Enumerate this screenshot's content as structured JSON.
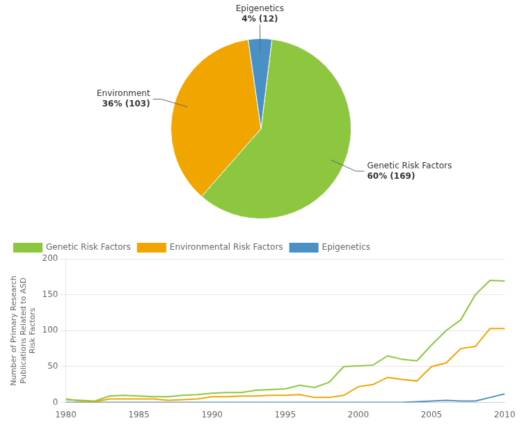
{
  "chart_data": [
    {
      "type": "pie",
      "categories": [
        "Genetic Risk Factors",
        "Environment",
        "Epigenetics"
      ],
      "values": [
        169,
        103,
        12
      ],
      "value_labels": [
        "60% (169)",
        "36% (103)",
        "4% (12)"
      ],
      "colors": [
        "#8dc63f",
        "#f0a500",
        "#4a90c4"
      ],
      "data_labels": true
    },
    {
      "type": "line",
      "x": [
        1980,
        1981,
        1982,
        1983,
        1984,
        1985,
        1986,
        1987,
        1988,
        1989,
        1990,
        1991,
        1992,
        1993,
        1994,
        1995,
        1996,
        1997,
        1998,
        1999,
        2000,
        2001,
        2002,
        2003,
        2004,
        2005,
        2006,
        2007,
        2008,
        2009,
        2010
      ],
      "series": [
        {
          "name": "Genetic Risk Factors",
          "color": "#8dc63f",
          "values": [
            4,
            3,
            2,
            9,
            10,
            9,
            8,
            8,
            10,
            11,
            13,
            14,
            14,
            17,
            18,
            19,
            24,
            21,
            28,
            50,
            51,
            52,
            65,
            60,
            58,
            80,
            100,
            115,
            150,
            170,
            169
          ]
        },
        {
          "name": "Environmental Risk Factors",
          "color": "#f0a500",
          "values": [
            5,
            2,
            1,
            5,
            5,
            5,
            5,
            3,
            4,
            5,
            8,
            8,
            9,
            9,
            10,
            10,
            11,
            7,
            7,
            10,
            22,
            25,
            35,
            32,
            30,
            50,
            55,
            75,
            78,
            103,
            103
          ]
        },
        {
          "name": "Epigenetics",
          "color": "#4a90c4",
          "values": [
            0,
            0,
            0,
            0,
            0,
            0,
            0,
            0,
            0,
            0,
            0,
            0,
            0,
            0,
            0,
            0,
            0,
            0,
            0,
            0,
            0,
            0,
            0,
            0,
            1,
            2,
            3,
            2,
            2,
            7,
            12
          ]
        }
      ],
      "ylabel": "Number of Primary Research\nPublications Related to ASD\nRisk Factors",
      "xlim": [
        1980,
        2010
      ],
      "xticks": [
        1980,
        1985,
        1990,
        1995,
        2000,
        2005,
        2010
      ],
      "ylim": [
        0,
        200
      ],
      "yticks": [
        0,
        50,
        100,
        150,
        200
      ],
      "grid": true,
      "legend": "upper left"
    }
  ]
}
